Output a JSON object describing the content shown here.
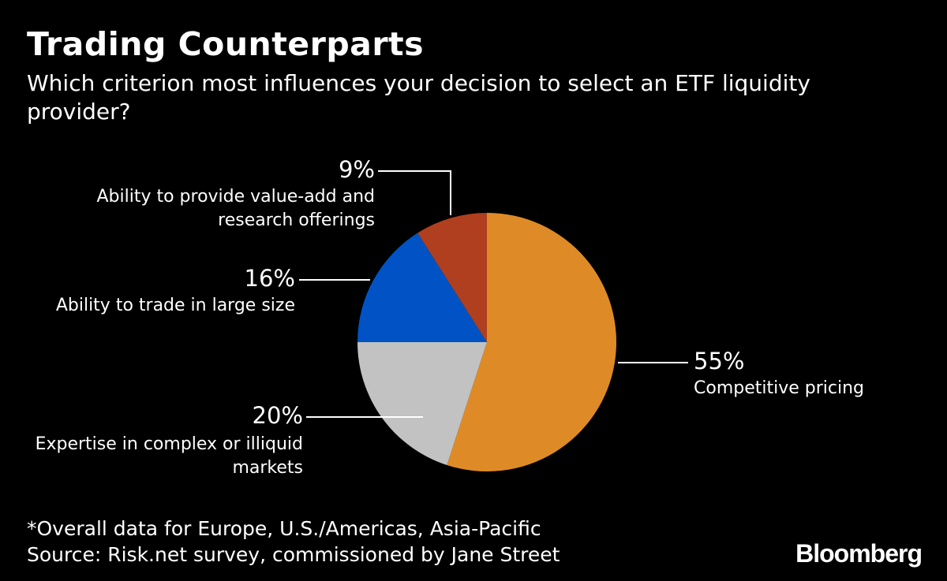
{
  "title": "Trading Counterparts",
  "subtitle": "Which criterion most influences your decision to select an ETF liquidity provider?",
  "footnote": "*Overall data for Europe, U.S./Americas, Asia-Pacific",
  "source": "Source: Risk.net survey, commissioned by Jane Street",
  "brand": "Bloomberg",
  "chart_data": {
    "type": "pie",
    "title": "Trading Counterparts",
    "start": "12 o'clock",
    "direction": "clockwise",
    "slices": [
      {
        "label_lines": [
          "Competitive pricing"
        ],
        "value": 55,
        "value_label": "55%",
        "color": "#DE8B27",
        "label_side": "right"
      },
      {
        "label_lines": [
          "Expertise in complex or illiquid",
          "markets"
        ],
        "value": 20,
        "value_label": "20%",
        "color": "#C2C2C2",
        "label_side": "left"
      },
      {
        "label_lines": [
          "Ability to trade in large size"
        ],
        "value": 16,
        "value_label": "16%",
        "color": "#0153C5",
        "label_side": "left"
      },
      {
        "label_lines": [
          "Ability to provide value-add and",
          "research offerings"
        ],
        "value": 9,
        "value_label": "9%",
        "color": "#AF3F1F",
        "label_side": "left"
      }
    ]
  }
}
